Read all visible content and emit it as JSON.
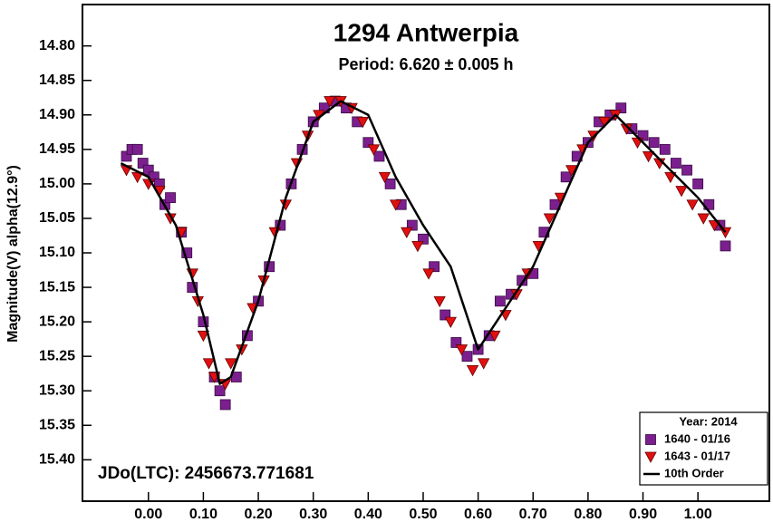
{
  "chart_data": {
    "type": "scatter",
    "title": "1294 Antwerpia",
    "subtitle": "Period: 6.620 ± 0.005 h",
    "y_label": "Magnitude(V) alpha(12.9°)",
    "annotation": "JDo(LTC): 2456673.771681",
    "legend_title": "Year: 2014",
    "legend": "lower right",
    "invert_y": true,
    "xlim": [
      -0.12,
      1.13
    ],
    "ylim": [
      14.74,
      15.46
    ],
    "xticks": [
      {
        "value": 0,
        "label": "0.00"
      },
      {
        "value": 0.1,
        "label": "0.10"
      },
      {
        "value": 0.2,
        "label": "0.20"
      },
      {
        "value": 0.3,
        "label": "0.30"
      },
      {
        "value": 0.4,
        "label": "0.40"
      },
      {
        "value": 0.5,
        "label": "0.50"
      },
      {
        "value": 0.6,
        "label": "0.60"
      },
      {
        "value": 0.7,
        "label": "0.70"
      },
      {
        "value": 0.8,
        "label": "0.80"
      },
      {
        "value": 0.9,
        "label": "0.90"
      },
      {
        "value": 1,
        "label": "1.00"
      }
    ],
    "yticks": [
      {
        "value": 14.8,
        "label": "14.80"
      },
      14.85,
      {
        "value": 14.9,
        "label": "14.90"
      },
      14.95,
      {
        "value": 15,
        "label": "15.00"
      },
      15.05,
      {
        "value": 15.1,
        "label": "15.10"
      },
      15.15,
      {
        "value": 15.2,
        "label": "15.20"
      },
      15.25,
      {
        "value": 15.3,
        "label": "15.30"
      },
      15.35,
      {
        "value": 15.4,
        "label": "15.40"
      }
    ],
    "series": [
      {
        "name": "1640 - 01/16",
        "marker": "square",
        "color": "#7b1f8e",
        "x": [
          -0.04,
          -0.03,
          -0.02,
          -0.01,
          0.0,
          0.01,
          0.02,
          0.03,
          0.04,
          0.06,
          0.07,
          0.08,
          0.1,
          0.12,
          0.13,
          0.14,
          0.16,
          0.18,
          0.2,
          0.22,
          0.24,
          0.26,
          0.28,
          0.3,
          0.32,
          0.34,
          0.36,
          0.38,
          0.4,
          0.42,
          0.44,
          0.46,
          0.48,
          0.5,
          0.52,
          0.54,
          0.56,
          0.58,
          0.6,
          0.62,
          0.64,
          0.66,
          0.68,
          0.7,
          0.72,
          0.74,
          0.76,
          0.78,
          0.8,
          0.82,
          0.84,
          0.86,
          0.88,
          0.9,
          0.92,
          0.94,
          0.96,
          0.98,
          1.0,
          1.02,
          1.04,
          1.05
        ],
        "values": [
          14.96,
          14.95,
          14.95,
          14.97,
          14.98,
          14.99,
          15.0,
          15.03,
          15.02,
          15.07,
          15.1,
          15.15,
          15.2,
          15.28,
          15.3,
          15.32,
          15.28,
          15.22,
          15.17,
          15.12,
          15.06,
          15.0,
          14.95,
          14.91,
          14.89,
          14.88,
          14.89,
          14.91,
          14.94,
          14.96,
          15.0,
          15.03,
          15.06,
          15.08,
          15.12,
          15.19,
          15.23,
          15.25,
          15.24,
          15.22,
          15.17,
          15.16,
          15.14,
          15.13,
          15.07,
          15.03,
          14.99,
          14.96,
          14.94,
          14.91,
          14.9,
          14.89,
          14.92,
          14.93,
          14.94,
          14.95,
          14.97,
          14.98,
          15.0,
          15.03,
          15.06,
          15.09
        ]
      },
      {
        "name": "1643 - 01/17",
        "marker": "triangle",
        "color": "#e01010",
        "x": [
          -0.04,
          -0.02,
          0.0,
          0.02,
          0.04,
          0.06,
          0.08,
          0.09,
          0.1,
          0.11,
          0.12,
          0.14,
          0.15,
          0.17,
          0.19,
          0.21,
          0.23,
          0.25,
          0.27,
          0.29,
          0.31,
          0.33,
          0.35,
          0.37,
          0.39,
          0.41,
          0.43,
          0.45,
          0.47,
          0.49,
          0.51,
          0.53,
          0.55,
          0.57,
          0.59,
          0.61,
          0.63,
          0.65,
          0.67,
          0.69,
          0.71,
          0.73,
          0.75,
          0.77,
          0.79,
          0.81,
          0.83,
          0.85,
          0.87,
          0.89,
          0.91,
          0.93,
          0.95,
          0.97,
          0.99,
          1.01,
          1.03,
          1.05
        ],
        "values": [
          14.98,
          14.99,
          15.0,
          15.01,
          15.05,
          15.07,
          15.13,
          15.17,
          15.22,
          15.26,
          15.28,
          15.29,
          15.26,
          15.24,
          15.18,
          15.14,
          15.07,
          15.03,
          14.97,
          14.93,
          14.9,
          14.88,
          14.88,
          14.89,
          14.91,
          14.95,
          14.99,
          15.03,
          15.07,
          15.09,
          15.13,
          15.17,
          15.2,
          15.24,
          15.27,
          15.26,
          15.22,
          15.19,
          15.16,
          15.13,
          15.09,
          15.05,
          15.02,
          14.98,
          14.95,
          14.93,
          14.91,
          14.9,
          14.92,
          14.94,
          14.96,
          14.97,
          14.99,
          15.01,
          15.03,
          15.05,
          15.06,
          15.07
        ]
      },
      {
        "name": "10th Order",
        "marker": "line",
        "color": "#000000",
        "x": [
          -0.05,
          0.0,
          0.05,
          0.1,
          0.13,
          0.15,
          0.2,
          0.25,
          0.3,
          0.35,
          0.4,
          0.45,
          0.5,
          0.55,
          0.6,
          0.65,
          0.7,
          0.75,
          0.8,
          0.85,
          0.9,
          0.95,
          1.0,
          1.05
        ],
        "values": [
          14.97,
          14.99,
          15.06,
          15.19,
          15.29,
          15.28,
          15.17,
          15.02,
          14.91,
          14.88,
          14.9,
          14.99,
          15.06,
          15.12,
          15.24,
          15.18,
          15.12,
          15.03,
          14.94,
          14.9,
          14.94,
          14.98,
          15.02,
          15.07
        ]
      }
    ]
  }
}
